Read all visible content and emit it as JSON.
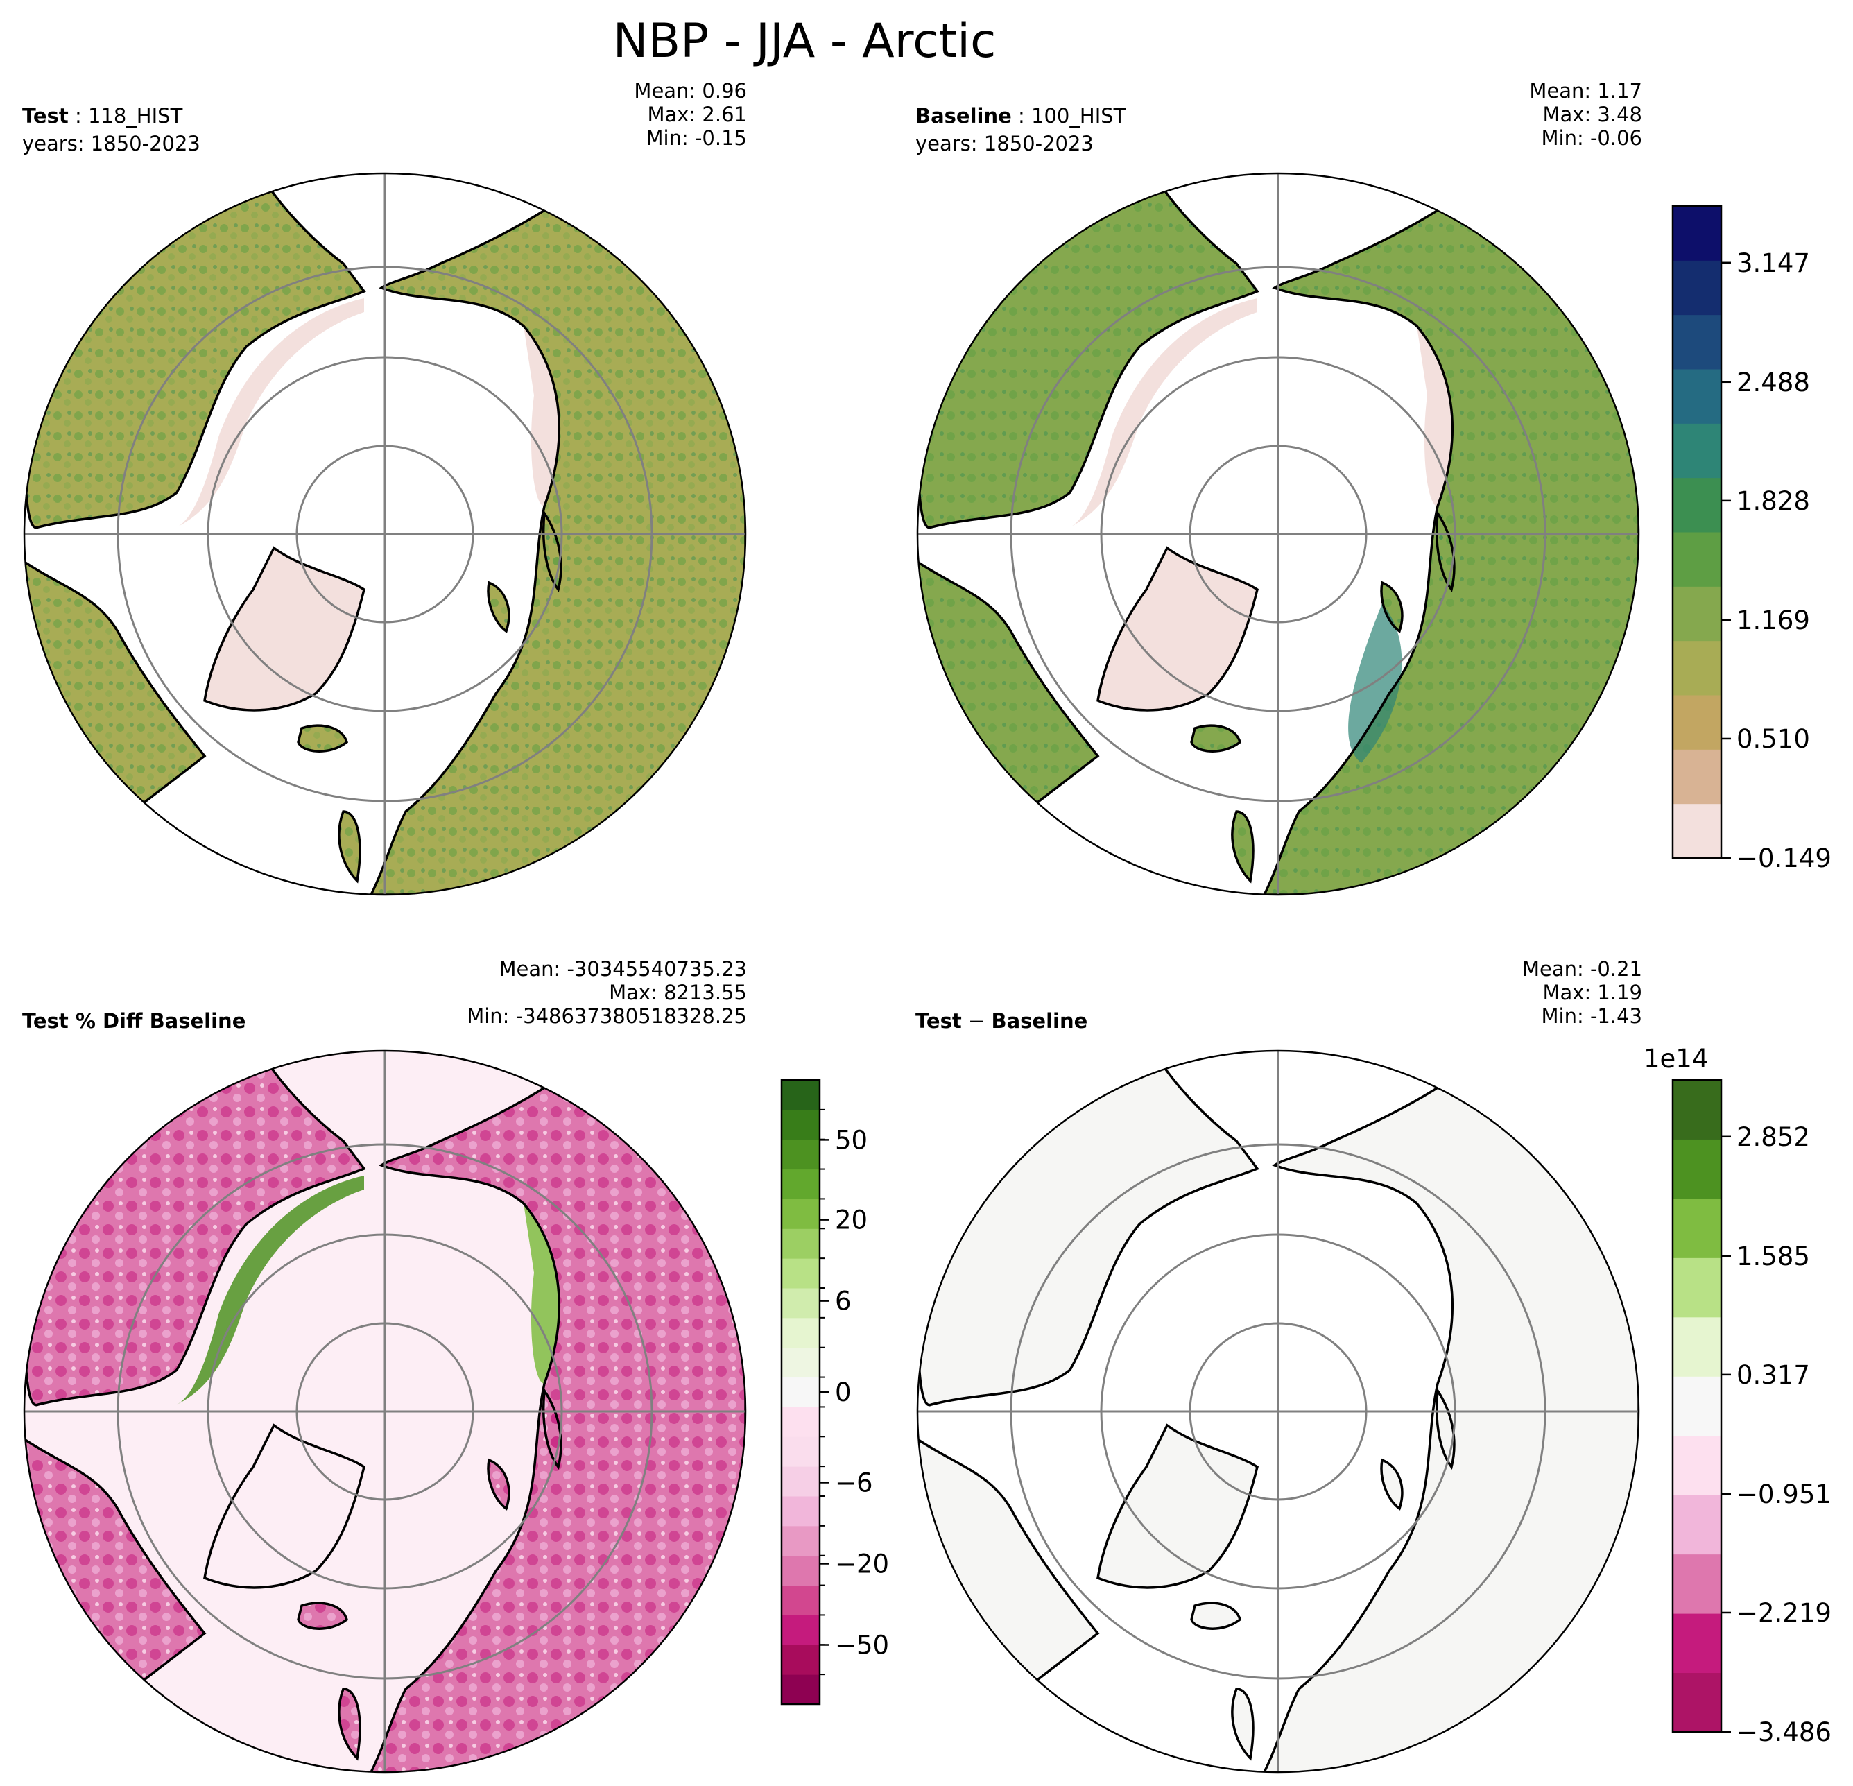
{
  "title": "NBP - JJA - Arctic",
  "panels": {
    "test": {
      "label_bold": "Test",
      "label_sep": " : ",
      "case": "118_HIST",
      "years": "years: 1850-2023",
      "mean": "Mean:  0.96",
      "max": "Max:  2.61",
      "min": "Min: -0.15"
    },
    "baseline": {
      "label_bold": "Baseline",
      "label_sep": " : ",
      "case": "100_HIST",
      "years": "years: 1850-2023",
      "mean": "Mean:  1.17",
      "max": "Max:  3.48",
      "min": "Min: -0.06"
    },
    "pctdiff": {
      "label_bold": "Test % Diff Baseline",
      "mean": "Mean: -30345540735.23",
      "max": "Max: 8213.55",
      "min": "Min: -348637380518328.25"
    },
    "diff": {
      "label_bold": "Test",
      "label_sep": " − ",
      "label_bold2": "Baseline",
      "mean": "Mean: -0.21",
      "max": "Max:  1.19",
      "min": "Min: -1.43"
    }
  },
  "colorbars": {
    "main": {
      "ticks": [
        3.147,
        2.488,
        1.828,
        1.169,
        0.51,
        -0.149
      ],
      "labels": [
        "3.147",
        "2.488",
        "1.828",
        "1.169",
        "0.510",
        "−0.149"
      ],
      "colors": [
        "#f3e0dd",
        "#d8b394",
        "#c2a662",
        "#a8ac55",
        "#85a84e",
        "#5e9e44",
        "#3c8f51",
        "#2e8576",
        "#256b82",
        "#1d4a7c",
        "#142d6f",
        "#0d0f6a"
      ]
    },
    "pct": {
      "labels": [
        "50",
        "20",
        "6",
        "0",
        "−6",
        "−20",
        "−50"
      ],
      "colors": [
        "#8e0152",
        "#a80c5c",
        "#c51b7d",
        "#d2478f",
        "#de77ae",
        "#e899c4",
        "#f1b6da",
        "#f6cfe6",
        "#fadded",
        "#fde0ef",
        "#f7f7f7",
        "#eef6e2",
        "#e6f5d0",
        "#d0ecad",
        "#b8e186",
        "#9ccf63",
        "#7fbc41",
        "#62a82d",
        "#4d9221",
        "#387d19",
        "#276419"
      ]
    },
    "diff": {
      "multiplier": "1e14",
      "labels": [
        "2.852",
        "1.585",
        "0.317",
        "−0.951",
        "−2.219",
        "−3.486"
      ],
      "colors": [
        "#ad1466",
        "#c51b7d",
        "#de77ae",
        "#f1b6da",
        "#fde0ef",
        "#f7f7f7",
        "#e6f5d0",
        "#b8e186",
        "#7fbc41",
        "#4d9221",
        "#386c1c"
      ]
    }
  },
  "map_colors": {
    "test_ocean": "#ffffff",
    "test_land_low": "#f3e0dd",
    "test_land_mid": "#a8ac55",
    "test_land_high": "#3c8f51",
    "pct_land": "#de77ae",
    "pct_green": "#4d9221",
    "diff_land": "#f6f6f4"
  }
}
